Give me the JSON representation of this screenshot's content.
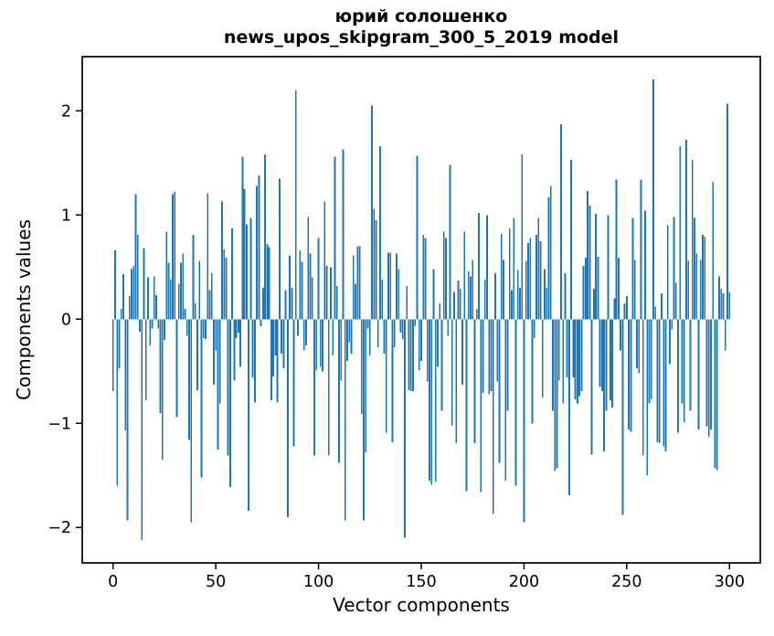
{
  "chart_data": {
    "type": "bar",
    "title_line1": "юрий солошенко",
    "title_line2": "news_upos_skipgram_300_5_2019 model",
    "title": "юрий солошенко\nnews_upos_skipgram_300_5_2019 model",
    "xlabel": "Vector components",
    "ylabel": "Components values",
    "bar_color": "#1f77b4",
    "axis_color": "#000000",
    "background_color": "#ffffff",
    "grid": false,
    "legend_position": "none",
    "x_start": 0,
    "xticks": [
      0,
      50,
      100,
      150,
      200,
      250,
      300
    ],
    "yticks": [
      -2,
      -1,
      0,
      1,
      2
    ],
    "xlim": [
      -15,
      315
    ],
    "ylim": [
      -2.34,
      2.52
    ],
    "values": [
      -0.69,
      0.66,
      -1.6,
      -0.47,
      0.1,
      0.43,
      -1.07,
      -1.93,
      0.22,
      0.48,
      0.51,
      1.2,
      0.81,
      -0.12,
      -2.12,
      0.68,
      -0.78,
      0.4,
      -0.25,
      -0.09,
      0.41,
      0.23,
      -0.09,
      -0.9,
      -1.35,
      -0.2,
      0.84,
      0.54,
      0.38,
      1.2,
      1.22,
      -0.94,
      0.34,
      0.54,
      0.63,
      0.1,
      -0.16,
      -1.16,
      -1.95,
      0.81,
      0.15,
      -0.68,
      0.56,
      -1.52,
      -0.18,
      -0.19,
      1.21,
      0.28,
      0.44,
      -0.63,
      -0.3,
      -1.25,
      -0.81,
      1.13,
      0.67,
      0.59,
      -1.31,
      -1.61,
      0.87,
      -0.59,
      -0.18,
      -0.13,
      -0.46,
      1.56,
      1.25,
      0.91,
      -1.84,
      0.97,
      -0.56,
      -0.8,
      1.28,
      1.38,
      -0.07,
      0.3,
      1.58,
      0.72,
      0.69,
      -0.78,
      -0.55,
      -0.35,
      -0.8,
      1.35,
      -0.33,
      -0.47,
      0.28,
      -1.9,
      0.61,
      0.3,
      -1.22,
      2.2,
      -0.16,
      0.66,
      0.55,
      -0.3,
      -0.25,
      0.98,
      0.63,
      0.4,
      -1.31,
      -0.49,
      0.78,
      -0.46,
      -0.5,
      1.13,
      0.51,
      -1.31,
      0.5,
      -0.35,
      1.56,
      0.32,
      -1.38,
      -0.59,
      1.63,
      -1.93,
      -0.4,
      -0.22,
      -0.33,
      0.61,
      0.34,
      0.7,
      0.7,
      -0.91,
      -1.93,
      -1.28,
      -0.09,
      -0.35,
      2.05,
      1.06,
      0.95,
      -0.27,
      1.66,
      0.38,
      -0.33,
      -1.09,
      0.64,
      0.64,
      -1.18,
      -0.27,
      0.63,
      0.48,
      -0.13,
      -0.19,
      -2.1,
      0.32,
      -0.68,
      -0.69,
      -0.69,
      -0.07,
      1.57,
      -0.49,
      -0.4,
      0.81,
      0.78,
      -0.6,
      -1.55,
      -1.59,
      0.48,
      -1.56,
      -0.46,
      0.15,
      -0.88,
      0.84,
      0.78,
      -0.16,
      1.48,
      -1.02,
      0.26,
      -1.19,
      0.37,
      0.29,
      -0.63,
      0.84,
      -1.65,
      0.46,
      0.41,
      0.57,
      -1.19,
      0.1,
      1.02,
      -1.66,
      -0.71,
      0.38,
      1.0,
      -0.72,
      -0.69,
      -1.87,
      0.44,
      -0.6,
      -1.38,
      0.82,
      0.57,
      -1.55,
      -0.88,
      0.87,
      0.28,
      0.97,
      -1.6,
      0.47,
      0.3,
      1.58,
      -1.95,
      0.56,
      0.73,
      0.78,
      -1.0,
      -0.18,
      0.81,
      0.97,
      0.75,
      -0.75,
      0.48,
      0.3,
      1.17,
      1.28,
      -0.88,
      -1.46,
      -1.43,
      -0.59,
      1.87,
      -0.81,
      0.44,
      -0.56,
      -1.69,
      1.53,
      -0.56,
      -0.77,
      -0.81,
      -0.74,
      -0.69,
      0.51,
      0.59,
      1.23,
      1.09,
      -1.3,
      0.29,
      1.01,
      0.6,
      -0.65,
      -0.69,
      -1.27,
      -0.88,
      1.0,
      -0.78,
      -0.85,
      0.2,
      1.34,
      0.59,
      -0.3,
      -1.88,
      0.15,
      0.22,
      -1.06,
      -1.08,
      0.97,
      0.57,
      -0.47,
      -0.52,
      1.34,
      -1.31,
      1.04,
      -1.5,
      -0.81,
      -0.77,
      2.3,
      0.12,
      -1.18,
      -1.19,
      0.25,
      -1.22,
      -1.27,
      0.9,
      -0.43,
      -0.1,
      0.98,
      0.35,
      -1.09,
      1.66,
      -0.81,
      -0.99,
      1.72,
      0.56,
      -0.88,
      1.53,
      0.97,
      0.63,
      -1.06,
      0.57,
      0.81,
      0.79,
      -1.03,
      -1.13,
      -1.06,
      1.32,
      -1.43,
      -1.45,
      0.41,
      0.29,
      0.25,
      -0.3,
      2.07,
      0.26
    ]
  }
}
